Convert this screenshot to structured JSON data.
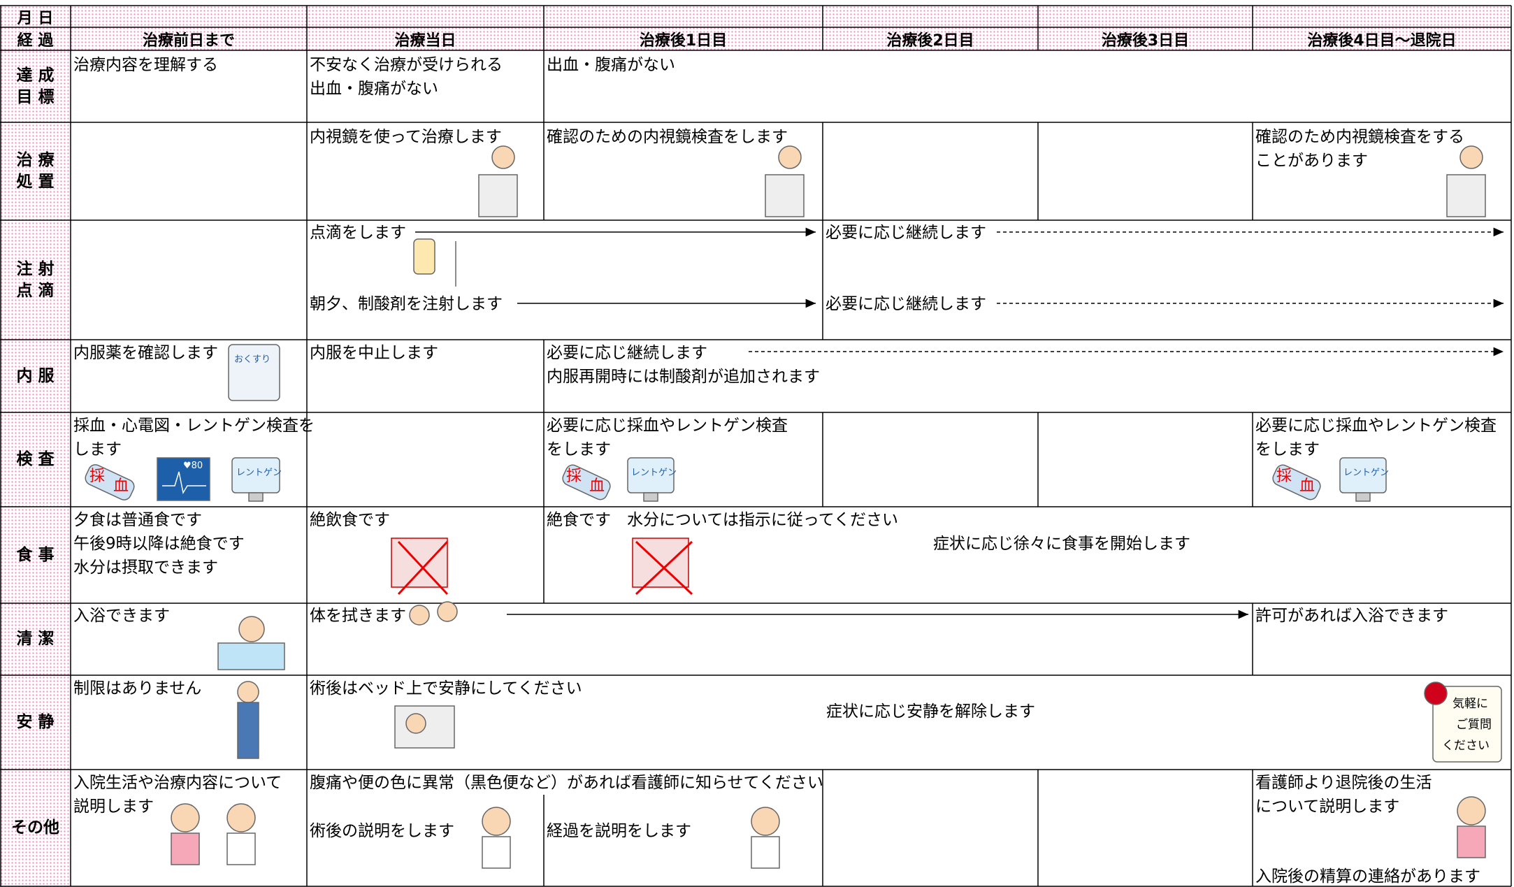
{
  "header": {
    "date_label": "月 日",
    "progress_label": "経 過",
    "columns": [
      "治療前日まで",
      "治療当日",
      "治療後1日目",
      "治療後2日目",
      "治療後3日目",
      "治療後4日目～退院日"
    ]
  },
  "rows": [
    {
      "label": [
        "達 成",
        "目 標"
      ],
      "cells": [
        [
          "治療内容を理解する"
        ],
        [
          "不安なく治療が受けられる",
          "出血・腹痛がない"
        ],
        [
          "出血・腹痛がない"
        ]
      ]
    },
    {
      "label": [
        "治 療",
        "処 置"
      ],
      "cells": [
        [
          "内視鏡を使って治療します"
        ],
        [
          "確認のための内視鏡検査をします"
        ],
        [
          "確認のため内視鏡検査をする",
          "ことがあります"
        ]
      ]
    },
    {
      "label": [
        "注 射",
        "点 滴"
      ],
      "cells": [
        [
          "点滴をします",
          "朝夕、制酸剤を注射します"
        ],
        [
          "必要に応じ継続します",
          "必要に応じ継続します"
        ]
      ]
    },
    {
      "label": [
        "内 服"
      ],
      "cells": [
        [
          "内服薬を確認します"
        ],
        [
          "内服を中止します"
        ],
        [
          "必要に応じ継続します",
          "内服再開時には制酸剤が追加されます"
        ]
      ]
    },
    {
      "label": [
        "検 査"
      ],
      "cells": [
        [
          "採血・心電図・レントゲン検査を",
          "します"
        ],
        [
          "必要に応じ採血やレントゲン検査",
          "をします"
        ],
        [
          "必要に応じ採血やレントゲン検査",
          "をします"
        ]
      ]
    },
    {
      "label": [
        "食 事"
      ],
      "cells": [
        [
          "夕食は普通食です",
          "午後9時以降は絶食です",
          "水分は摂取できます"
        ],
        [
          "絶飲食です"
        ],
        [
          "絶食です　水分については指示に従ってください",
          "症状に応じ徐々に食事を開始します"
        ]
      ]
    },
    {
      "label": [
        "清 潔"
      ],
      "cells": [
        [
          "入浴できます"
        ],
        [
          "体を拭きます"
        ],
        [
          "許可があれば入浴できます"
        ]
      ]
    },
    {
      "label": [
        "安 静"
      ],
      "cells": [
        [
          "制限はありません"
        ],
        [
          "術後はベッド上で安静にしてください",
          "症状に応じ安静を解除します"
        ]
      ]
    },
    {
      "label": [
        "その他"
      ],
      "cells": [
        [
          "入院生活や治療内容について",
          "説明します"
        ],
        [
          "腹痛や便の色に異常（黒色便など）があれば看護師に知らせてください"
        ],
        [
          "術後の説明をします"
        ],
        [
          "経過を説明をします"
        ],
        [
          "看護師より退院後の生活",
          "について説明します",
          "入院後の精算の連絡があります"
        ]
      ]
    }
  ],
  "badge": [
    "気軽に",
    "ご質問",
    "ください"
  ],
  "icons": {
    "medicine": "おくすり",
    "blood": [
      "採",
      "血"
    ],
    "xray": "レントゲン",
    "ecg": "♥80"
  }
}
